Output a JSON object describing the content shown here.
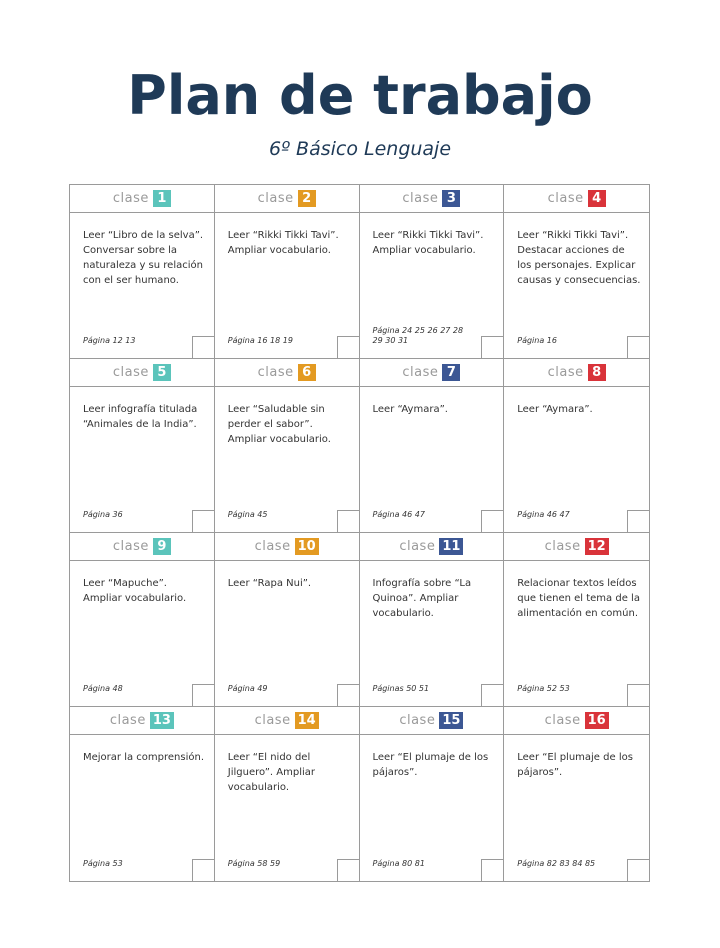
{
  "title": "Plan de trabajo",
  "subtitle": "6º Básico Lenguaje",
  "clase_label": "clase",
  "colors": {
    "teal": "#5bc4bb",
    "orange": "#e39a22",
    "navy": "#3c5794",
    "red": "#d9333a"
  },
  "classes": [
    {
      "num": "1",
      "color": "teal",
      "desc": "Leer “Libro de la selva”. Conversar sobre la naturaleza y su relación con el ser humano.",
      "page": "Página 12 13"
    },
    {
      "num": "2",
      "color": "orange",
      "desc": "Leer “Rikki Tikki Tavi”. Ampliar vocabulario.",
      "page": "Página 16 18 19"
    },
    {
      "num": "3",
      "color": "navy",
      "desc": "Leer “Rikki Tikki Tavi”. Ampliar vocabulario.",
      "page": "Página 24 25 26 27 28 29 30 31"
    },
    {
      "num": "4",
      "color": "red",
      "desc": "Leer “Rikki Tikki Tavi”. Destacar acciones de los personajes. Explicar causas y consecuencias.",
      "page": "Página 16"
    },
    {
      "num": "5",
      "color": "teal",
      "desc": "Leer infografía titulada “Animales de la India”.",
      "page": "Página 36"
    },
    {
      "num": "6",
      "color": "orange",
      "desc": "Leer “Saludable sin perder el sabor”. Ampliar vocabulario.",
      "page": "Página 45"
    },
    {
      "num": "7",
      "color": "navy",
      "desc": "Leer “Aymara”.",
      "page": "Página 46 47"
    },
    {
      "num": "8",
      "color": "red",
      "desc": "Leer “Aymara”.",
      "page": "Página 46 47"
    },
    {
      "num": "9",
      "color": "teal",
      "desc": "Leer “Mapuche”. Ampliar vocabulario.",
      "page": "Página 48"
    },
    {
      "num": "10",
      "color": "orange",
      "desc": "Leer “Rapa Nui”.",
      "page": "Página 49"
    },
    {
      "num": "11",
      "color": "navy",
      "desc": "Infografía sobre “La Quinoa”. Ampliar vocabulario.",
      "page": "Páginas 50 51"
    },
    {
      "num": "12",
      "color": "red",
      "desc": "Relacionar textos leídos que tienen el tema de la alimentación en común.",
      "page": "Página 52 53"
    },
    {
      "num": "13",
      "color": "teal",
      "desc": "Mejorar la comprensión.",
      "page": "Página 53"
    },
    {
      "num": "14",
      "color": "orange",
      "desc": "Leer “El nido del Jilguero”. Ampliar vocabulario.",
      "page": "Página 58 59"
    },
    {
      "num": "15",
      "color": "navy",
      "desc": "Leer “El plumaje de los pájaros”.",
      "page": "Página 80 81"
    },
    {
      "num": "16",
      "color": "red",
      "desc": "Leer “El plumaje de los pájaros”.",
      "page": "Página 82 83 84 85"
    }
  ]
}
